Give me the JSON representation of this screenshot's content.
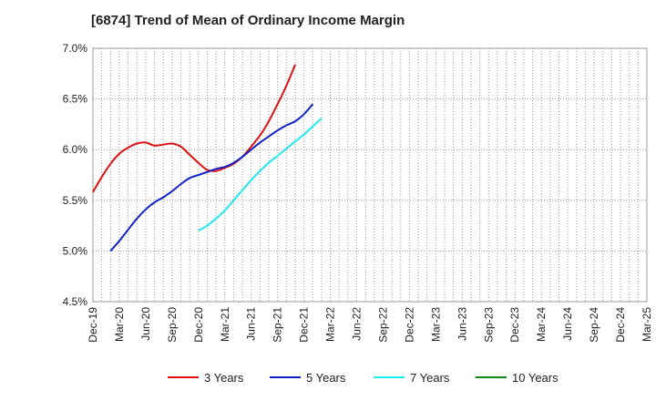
{
  "chart_data": {
    "type": "line",
    "title": "[6874]  Trend of Mean of Ordinary Income Margin",
    "xlabel": "",
    "ylabel": "",
    "ylim": [
      4.5,
      7.0
    ],
    "y_ticks": [
      4.5,
      5.0,
      5.5,
      6.0,
      6.5,
      7.0
    ],
    "y_tick_labels": [
      "4.5%",
      "5.0%",
      "5.5%",
      "6.0%",
      "6.5%",
      "7.0%"
    ],
    "x_ticks": [
      "Dec-19",
      "Mar-20",
      "Jun-20",
      "Sep-20",
      "Dec-20",
      "Mar-21",
      "Jun-21",
      "Sep-21",
      "Dec-21",
      "Mar-22",
      "Jun-22",
      "Sep-22",
      "Dec-22",
      "Mar-23",
      "Jun-23",
      "Sep-23",
      "Dec-23",
      "Mar-24",
      "Jun-24",
      "Sep-24",
      "Dec-24",
      "Mar-25"
    ],
    "grid": true,
    "legend_position": "bottom",
    "series": [
      {
        "name": "3 Years",
        "color": "#dd1111",
        "start_index": 0,
        "values": [
          5.58,
          5.73,
          5.86,
          5.96,
          6.02,
          6.06,
          6.07,
          6.04,
          6.05,
          6.06,
          6.03,
          5.95,
          5.87,
          5.8,
          5.79,
          5.82,
          5.86,
          5.93,
          6.03,
          6.14,
          6.28,
          6.45,
          6.63,
          6.84
        ]
      },
      {
        "name": "5 Years",
        "color": "#1122cc",
        "start_index": 2,
        "values": [
          5.0,
          5.1,
          5.21,
          5.32,
          5.41,
          5.48,
          5.53,
          5.59,
          5.66,
          5.72,
          5.75,
          5.78,
          5.81,
          5.83,
          5.87,
          5.93,
          6.0,
          6.07,
          6.13,
          6.19,
          6.24,
          6.28,
          6.35,
          6.45
        ]
      },
      {
        "name": "7 Years",
        "color": "#22e8f0",
        "start_index": 12,
        "values": [
          5.2,
          5.25,
          5.32,
          5.4,
          5.5,
          5.6,
          5.7,
          5.79,
          5.87,
          5.94,
          6.01,
          6.08,
          6.15,
          6.23,
          6.31
        ]
      },
      {
        "name": "10 Years",
        "color": "#118811",
        "start_index": 0,
        "values": []
      }
    ]
  }
}
